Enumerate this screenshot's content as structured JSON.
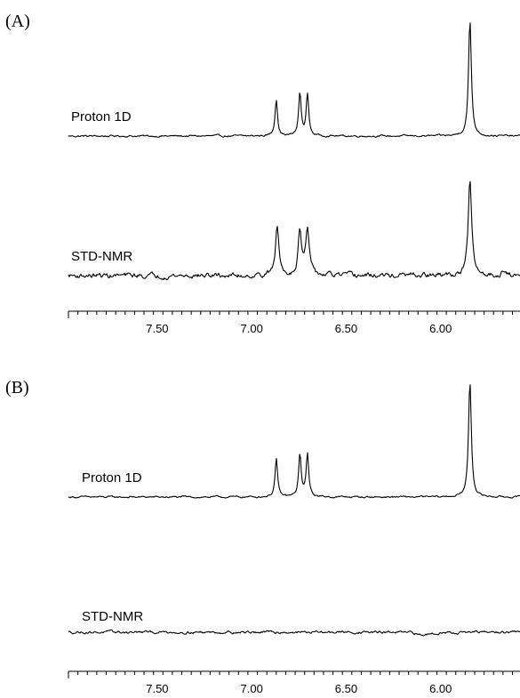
{
  "chart_data": [
    {
      "type": "line",
      "panel_label": "(A)",
      "x_axis": {
        "xlim": [
          7.97,
          5.58
        ],
        "reversed": true,
        "major_ticks": [
          7.5,
          7.0,
          6.5,
          6.0
        ],
        "tick_labels": [
          "7.50",
          "7.00",
          "6.50",
          "6.00"
        ],
        "minor_tick_step": 0.05
      },
      "series": [
        {
          "name": "Proton 1D",
          "baseline_noise": 0.012,
          "peaks": [
            {
              "ppm": 6.87,
              "height": 0.32,
              "width": 0.008
            },
            {
              "ppm": 6.745,
              "height": 0.37,
              "width": 0.008
            },
            {
              "ppm": 6.705,
              "height": 0.36,
              "width": 0.008
            },
            {
              "ppm": 5.845,
              "height": 1.0,
              "width": 0.009
            }
          ]
        },
        {
          "name": "STD-NMR",
          "baseline_noise": 0.04,
          "peaks": [
            {
              "ppm": 6.865,
              "height": 0.52,
              "width": 0.011
            },
            {
              "ppm": 6.745,
              "height": 0.47,
              "width": 0.011
            },
            {
              "ppm": 6.705,
              "height": 0.48,
              "width": 0.011
            },
            {
              "ppm": 5.845,
              "height": 1.0,
              "width": 0.011
            },
            {
              "ppm": 5.67,
              "height": 0.06,
              "width": 0.01
            }
          ]
        }
      ]
    },
    {
      "type": "line",
      "panel_label": "(B)",
      "x_axis": {
        "xlim": [
          7.97,
          5.58
        ],
        "reversed": true,
        "major_ticks": [
          7.5,
          7.0,
          6.5,
          6.0
        ],
        "tick_labels": [
          "7.50",
          "7.00",
          "6.50",
          "6.00"
        ],
        "minor_tick_step": 0.05
      },
      "series": [
        {
          "name": "Proton 1D",
          "baseline_noise": 0.012,
          "peaks": [
            {
              "ppm": 6.87,
              "height": 0.33,
              "width": 0.008
            },
            {
              "ppm": 6.745,
              "height": 0.37,
              "width": 0.008
            },
            {
              "ppm": 6.705,
              "height": 0.37,
              "width": 0.008
            },
            {
              "ppm": 5.845,
              "height": 1.0,
              "width": 0.009
            }
          ]
        },
        {
          "name": "STD-NMR",
          "baseline_noise": 0.02,
          "peaks": [
            {
              "ppm": 6.1,
              "height": -0.03,
              "width": 0.04
            }
          ]
        }
      ]
    }
  ]
}
